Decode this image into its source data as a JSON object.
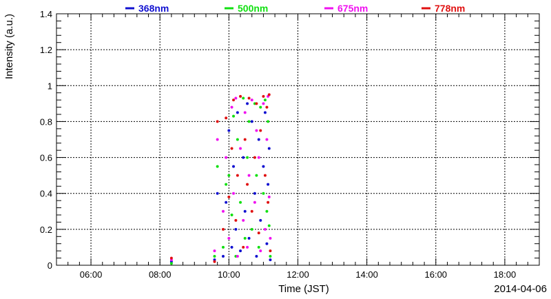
{
  "chart_data": {
    "type": "scatter",
    "title": "",
    "xlabel": "Time (JST)",
    "ylabel": "Intensity (a.u.)",
    "date_label": "2014-04-06",
    "xlim": [
      "05:00",
      "19:00"
    ],
    "ylim": [
      0,
      1.4
    ],
    "grid": true,
    "legend_placement": "top",
    "x_tick_labels": [
      "06:00",
      "08:00",
      "10:00",
      "12:00",
      "14:00",
      "16:00",
      "18:00"
    ],
    "y_tick_labels": [
      "0",
      "0.2",
      "0.4",
      "0.6",
      "0.8",
      "1",
      "1.2",
      "1.4"
    ],
    "series": [
      {
        "name": "368nm",
        "color": "#1010d0",
        "x": [
          "08:20",
          "09:35",
          "09:40",
          "09:50",
          "09:55",
          "10:00",
          "10:05",
          "10:08",
          "10:12",
          "10:15",
          "10:20",
          "10:25",
          "10:28",
          "10:32",
          "10:35",
          "10:40",
          "10:45",
          "10:48",
          "10:52",
          "10:55",
          "11:00",
          "11:03",
          "11:06",
          "11:08",
          "11:10",
          "11:12"
        ],
        "y": [
          0.02,
          0.03,
          0.4,
          0.05,
          0.35,
          0.75,
          0.1,
          0.55,
          0.2,
          0.85,
          0.08,
          0.6,
          0.3,
          0.9,
          0.15,
          0.8,
          0.4,
          0.05,
          0.7,
          0.25,
          0.55,
          0.85,
          0.12,
          0.45,
          0.65,
          0.03
        ]
      },
      {
        "name": "500nm",
        "color": "#10e010",
        "x": [
          "08:20",
          "09:35",
          "09:40",
          "09:50",
          "09:55",
          "10:00",
          "10:05",
          "10:08",
          "10:12",
          "10:15",
          "10:20",
          "10:25",
          "10:28",
          "10:32",
          "10:35",
          "10:40",
          "10:45",
          "10:48",
          "10:52",
          "10:55",
          "11:00",
          "11:03",
          "11:06",
          "11:08",
          "11:10",
          "11:12"
        ],
        "y": [
          0.01,
          0.05,
          0.55,
          0.1,
          0.45,
          0.5,
          0.28,
          0.83,
          0.05,
          0.7,
          0.35,
          0.93,
          0.15,
          0.6,
          0.8,
          0.2,
          0.9,
          0.5,
          0.1,
          0.88,
          0.4,
          0.92,
          0.3,
          0.8,
          0.22,
          0.05
        ]
      },
      {
        "name": "675nm",
        "color": "#f010f0",
        "x": [
          "08:20",
          "09:35",
          "09:40",
          "09:50",
          "09:55",
          "10:00",
          "10:05",
          "10:08",
          "10:12",
          "10:15",
          "10:20",
          "10:25",
          "10:28",
          "10:32",
          "10:35",
          "10:40",
          "10:45",
          "10:48",
          "10:52",
          "10:55",
          "11:00",
          "11:03",
          "11:06",
          "11:08",
          "11:10",
          "11:12"
        ],
        "y": [
          0.03,
          0.08,
          0.7,
          0.3,
          0.6,
          0.15,
          0.88,
          0.4,
          0.93,
          0.05,
          0.65,
          0.25,
          0.85,
          0.1,
          0.5,
          0.92,
          0.35,
          0.75,
          0.6,
          0.08,
          0.9,
          0.2,
          0.7,
          0.94,
          0.38,
          0.15
        ]
      },
      {
        "name": "778nm",
        "color": "#e01010",
        "x": [
          "08:20",
          "09:35",
          "09:40",
          "09:50",
          "09:55",
          "10:00",
          "10:05",
          "10:08",
          "10:12",
          "10:15",
          "10:20",
          "10:25",
          "10:28",
          "10:32",
          "10:35",
          "10:40",
          "10:45",
          "10:48",
          "10:52",
          "10:55",
          "11:00",
          "11:03",
          "11:06",
          "11:08",
          "11:10",
          "11:12"
        ],
        "y": [
          0.04,
          0.02,
          0.8,
          0.2,
          0.82,
          0.38,
          0.65,
          0.92,
          0.25,
          0.5,
          0.94,
          0.1,
          0.7,
          0.45,
          0.93,
          0.3,
          0.6,
          0.9,
          0.18,
          0.75,
          0.94,
          0.5,
          0.88,
          0.35,
          0.95,
          0.08
        ]
      }
    ]
  }
}
